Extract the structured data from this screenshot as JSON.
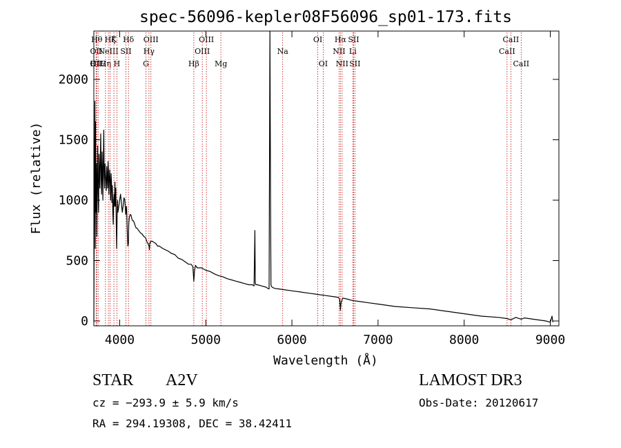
{
  "chart_data": {
    "type": "line",
    "title": "spec-56096-kepler08F56096_sp01-173.fits",
    "xlabel": "Wavelength (Å)",
    "ylabel": "Flux (relative)",
    "xlim": [
      3700,
      9100
    ],
    "ylim": [
      -40,
      2400
    ],
    "x_ticks": [
      4000,
      5000,
      6000,
      7000,
      8000,
      9000
    ],
    "y_ticks": [
      0,
      500,
      1000,
      1500,
      2000
    ],
    "grid": false,
    "series": [
      {
        "name": "flux",
        "x": [
          3700,
          3705,
          3712,
          3716,
          3720,
          3725,
          3730,
          3735,
          3740,
          3745,
          3750,
          3755,
          3760,
          3765,
          3770,
          3775,
          3780,
          3785,
          3790,
          3795,
          3800,
          3805,
          3810,
          3815,
          3820,
          3825,
          3830,
          3835,
          3840,
          3845,
          3850,
          3855,
          3860,
          3865,
          3870,
          3875,
          3880,
          3885,
          3890,
          3895,
          3900,
          3905,
          3910,
          3915,
          3920,
          3925,
          3930,
          3935,
          3940,
          3945,
          3950,
          3955,
          3960,
          3965,
          3970,
          3975,
          3980,
          3990,
          4000,
          4010,
          4020,
          4030,
          4040,
          4050,
          4060,
          4070,
          4080,
          4090,
          4095,
          4101,
          4105,
          4110,
          4120,
          4130,
          4140,
          4150,
          4160,
          4170,
          4180,
          4190,
          4200,
          4220,
          4240,
          4260,
          4280,
          4300,
          4320,
          4330,
          4340,
          4345,
          4350,
          4360,
          4380,
          4400,
          4420,
          4440,
          4460,
          4480,
          4500,
          4530,
          4560,
          4600,
          4640,
          4680,
          4720,
          4760,
          4800,
          4830,
          4850,
          4861,
          4870,
          4880,
          4900,
          4950,
          5000,
          5050,
          5100,
          5150,
          5200,
          5250,
          5300,
          5350,
          5400,
          5450,
          5500,
          5540,
          5560,
          5570,
          5575,
          5580,
          5600,
          5650,
          5700,
          5720,
          5735,
          5745,
          5752,
          5757,
          5760,
          5770,
          5800,
          5850,
          5900,
          6000,
          6100,
          6200,
          6300,
          6400,
          6500,
          6540,
          6555,
          6563,
          6570,
          6590,
          6650,
          6700,
          6800,
          6900,
          7000,
          7200,
          7400,
          7600,
          7800,
          8000,
          8200,
          8400,
          8498,
          8542,
          8600,
          8662,
          8700,
          8800,
          8900,
          8950,
          9000,
          9020,
          9030
        ],
        "values": [
          -10,
          880,
          1820,
          600,
          1650,
          900,
          1300,
          700,
          1200,
          1450,
          1050,
          900,
          1380,
          1250,
          1100,
          1350,
          1550,
          1180,
          1050,
          1400,
          1250,
          1000,
          1300,
          1580,
          1200,
          1100,
          1300,
          1220,
          1150,
          1080,
          1280,
          1200,
          1100,
          1320,
          1250,
          1050,
          1180,
          1250,
          1150,
          1000,
          1220,
          1150,
          980,
          1120,
          900,
          800,
          1000,
          1050,
          950,
          1150,
          950,
          1100,
          800,
          600,
          850,
          1000,
          900,
          950,
          1000,
          1050,
          980,
          900,
          950,
          1020,
          1000,
          880,
          950,
          700,
          620,
          640,
          800,
          850,
          880,
          880,
          850,
          830,
          830,
          810,
          790,
          770,
          770,
          750,
          730,
          720,
          700,
          690,
          650,
          640,
          620,
          590,
          640,
          660,
          660,
          650,
          640,
          620,
          620,
          610,
          600,
          590,
          580,
          560,
          550,
          520,
          510,
          490,
          470,
          470,
          450,
          330,
          420,
          460,
          440,
          440,
          420,
          410,
          390,
          375,
          365,
          350,
          340,
          330,
          320,
          310,
          300,
          300,
          290,
          750,
          320,
          300,
          300,
          290,
          280,
          270,
          265,
          2400,
          1000,
          300,
          290,
          280,
          270,
          265,
          260,
          250,
          240,
          230,
          220,
          210,
          200,
          195,
          180,
          90,
          150,
          190,
          180,
          170,
          160,
          150,
          140,
          120,
          110,
          100,
          80,
          60,
          40,
          30,
          20,
          10,
          30,
          15,
          25,
          15,
          5,
          0,
          -10,
          40,
          -10
        ]
      }
    ],
    "line_markers": [
      {
        "x": 3726,
        "label": "OII",
        "row": 3
      },
      {
        "x": 3727,
        "label": "OII",
        "row": 2
      },
      {
        "x": 3734,
        "label": "Hθ",
        "row": 1
      },
      {
        "x": 3750,
        "label": "H12",
        "row": 3
      },
      {
        "x": 3835,
        "label": "Hη",
        "row": 3
      },
      {
        "x": 3869,
        "label": "NeIII",
        "row": 2
      },
      {
        "x": 3889,
        "label": "Hζ",
        "row": 1
      },
      {
        "x": 3933,
        "label": "K",
        "row": 1
      },
      {
        "x": 3968,
        "label": "H",
        "row": 3
      },
      {
        "x": 4072,
        "label": "SII",
        "row": 2
      },
      {
        "x": 4102,
        "label": "Hδ",
        "row": 1
      },
      {
        "x": 4340,
        "label": "Hγ",
        "row": 2
      },
      {
        "x": 4305,
        "label": "G",
        "row": 3
      },
      {
        "x": 4363,
        "label": "OIII",
        "row": 1
      },
      {
        "x": 4861,
        "label": "Hβ",
        "row": 3
      },
      {
        "x": 4959,
        "label": "OIII",
        "row": 2
      },
      {
        "x": 5007,
        "label": "OIII",
        "row": 1
      },
      {
        "x": 5175,
        "label": "Mg",
        "row": 3
      },
      {
        "x": 5893,
        "label": "Na",
        "row": 2
      },
      {
        "x": 6300,
        "label": "OI",
        "row": 1
      },
      {
        "x": 6363,
        "label": "OI",
        "row": 3
      },
      {
        "x": 6548,
        "label": "NII",
        "row": 2
      },
      {
        "x": 6563,
        "label": "Hα",
        "row": 1
      },
      {
        "x": 6583,
        "label": "NII",
        "row": 3
      },
      {
        "x": 6707,
        "label": "Li",
        "row": 2
      },
      {
        "x": 6716,
        "label": "SII",
        "row": 1
      },
      {
        "x": 6731,
        "label": "SII",
        "row": 3
      },
      {
        "x": 8498,
        "label": "CaII",
        "row": 2
      },
      {
        "x": 8542,
        "label": "CaII",
        "row": 1
      },
      {
        "x": 8662,
        "label": "CaII",
        "row": 3
      }
    ]
  },
  "info": {
    "object_class": "STAR",
    "subclass": "A2V",
    "survey": "LAMOST DR3",
    "cz": "cz = −293.9 ± 5.9 km/s",
    "obs_date": "Obs-Date: 20120617",
    "coords": "RA = 294.19308, DEC =  38.42411"
  },
  "colors": {
    "marker_line": "#c00000",
    "spectrum": "#000000"
  }
}
